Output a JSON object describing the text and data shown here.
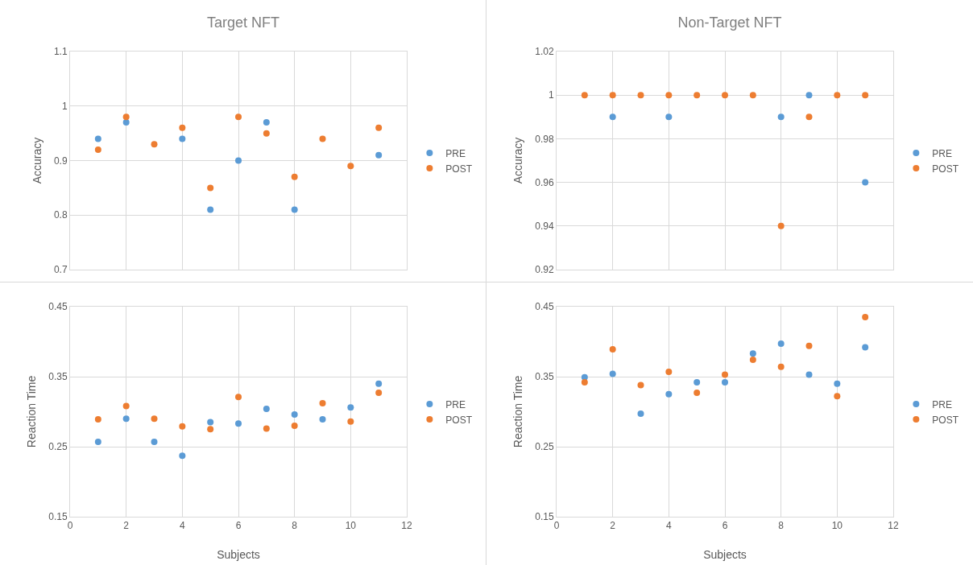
{
  "chart_data": [
    {
      "type": "scatter",
      "title": "Target NFT",
      "ylabel": "Accuracy",
      "x": [
        1,
        2,
        3,
        4,
        5,
        6,
        7,
        8,
        9,
        10,
        11
      ],
      "xlim": [
        0,
        12
      ],
      "xticks": [
        0,
        2,
        4,
        6,
        8,
        10,
        12
      ],
      "ylim": [
        0.7,
        1.1
      ],
      "yticks": [
        0.7,
        0.8,
        0.9,
        1,
        1.1
      ],
      "grid": true,
      "legend": "right",
      "marker": "circle",
      "tick_labels": "y",
      "series": [
        {
          "name": "PRE",
          "color": "#5b9bd5",
          "values": [
            0.94,
            0.97,
            null,
            0.94,
            0.81,
            0.9,
            0.97,
            0.81,
            null,
            null,
            0.91
          ]
        },
        {
          "name": "POST",
          "color": "#ed7d31",
          "values": [
            0.92,
            0.98,
            0.93,
            0.96,
            0.85,
            0.98,
            0.95,
            0.87,
            0.94,
            0.89,
            0.96
          ]
        }
      ]
    },
    {
      "type": "scatter",
      "title": "Non-Target NFT",
      "ylabel": "Accuracy",
      "x": [
        1,
        2,
        3,
        4,
        5,
        6,
        7,
        8,
        9,
        10,
        11
      ],
      "xlim": [
        0,
        12
      ],
      "xticks": [
        0,
        2,
        4,
        6,
        8,
        10,
        12
      ],
      "ylim": [
        0.92,
        1.02
      ],
      "yticks": [
        0.92,
        0.94,
        0.96,
        0.98,
        1,
        1.02
      ],
      "grid": true,
      "legend": "right",
      "marker": "circle",
      "tick_labels": "y",
      "series": [
        {
          "name": "PRE",
          "color": "#5b9bd5",
          "values": [
            null,
            0.99,
            null,
            0.99,
            null,
            null,
            null,
            0.99,
            1,
            null,
            0.96
          ]
        },
        {
          "name": "POST",
          "color": "#ed7d31",
          "values": [
            1,
            1,
            1,
            1,
            1,
            1,
            1,
            0.94,
            0.99,
            1,
            1
          ]
        }
      ]
    },
    {
      "type": "scatter",
      "xlabel": "Subjects",
      "ylabel": "Reaction Time",
      "x": [
        1,
        2,
        3,
        4,
        5,
        6,
        7,
        8,
        9,
        10,
        11
      ],
      "xlim": [
        0,
        12
      ],
      "xticks": [
        0,
        2,
        4,
        6,
        8,
        10,
        12
      ],
      "ylim": [
        0.15,
        0.45
      ],
      "yticks": [
        0.15,
        0.25,
        0.35,
        0.45
      ],
      "grid": true,
      "legend": "right",
      "marker": "circle",
      "series": [
        {
          "name": "PRE",
          "color": "#5b9bd5",
          "values": [
            0.257,
            0.29,
            0.257,
            0.237,
            0.285,
            0.283,
            0.304,
            0.296,
            0.289,
            0.306,
            0.34
          ]
        },
        {
          "name": "POST",
          "color": "#ed7d31",
          "values": [
            0.289,
            0.308,
            0.29,
            0.279,
            0.275,
            0.321,
            0.276,
            0.28,
            0.312,
            0.286,
            0.327
          ]
        }
      ]
    },
    {
      "type": "scatter",
      "xlabel": "Subjects",
      "ylabel": "Reaction Time",
      "x": [
        1,
        2,
        3,
        4,
        5,
        6,
        7,
        8,
        9,
        10,
        11
      ],
      "xlim": [
        0,
        12
      ],
      "xticks": [
        0,
        2,
        4,
        6,
        8,
        10,
        12
      ],
      "ylim": [
        0.15,
        0.45
      ],
      "yticks": [
        0.15,
        0.25,
        0.35,
        0.45
      ],
      "grid": true,
      "legend": "right",
      "marker": "circle",
      "series": [
        {
          "name": "PRE",
          "color": "#5b9bd5",
          "values": [
            0.349,
            0.354,
            0.297,
            0.325,
            0.342,
            0.342,
            0.383,
            0.397,
            0.353,
            0.34,
            0.392
          ]
        },
        {
          "name": "POST",
          "color": "#ed7d31",
          "values": [
            0.342,
            0.389,
            0.338,
            0.357,
            0.327,
            0.353,
            0.374,
            0.364,
            0.394,
            0.322,
            0.435
          ]
        }
      ]
    }
  ]
}
